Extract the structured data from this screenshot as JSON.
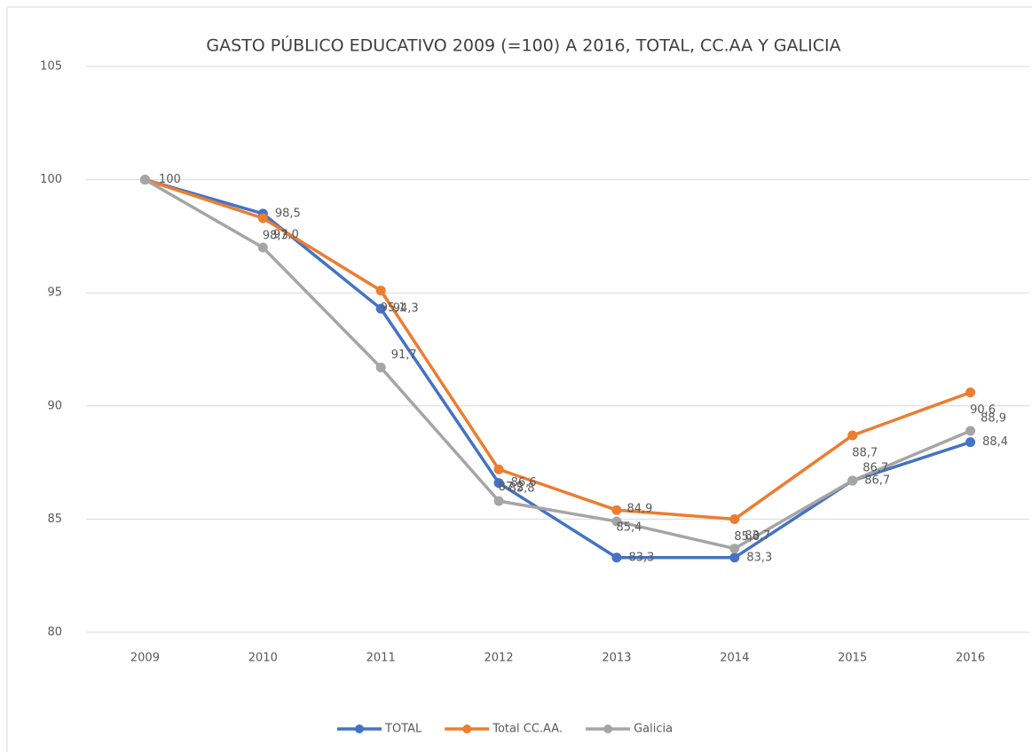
{
  "chart_data": {
    "type": "line",
    "title": "GASTO PÚBLICO EDUCATIVO 2009 (=100) A 2016, TOTAL, CC.AA Y GALICIA",
    "categories": [
      "2009",
      "2010",
      "2011",
      "2012",
      "2013",
      "2014",
      "2015",
      "2016"
    ],
    "series": [
      {
        "name": "TOTAL",
        "color": "#4472c4",
        "values": [
          100,
          98.5,
          94.3,
          86.6,
          83.3,
          83.3,
          86.7,
          88.4
        ],
        "value_labels": [
          "100",
          "98,5",
          "94,3",
          "86,6",
          "83,3",
          "83,3",
          "86,7",
          "88,4"
        ]
      },
      {
        "name": "Total CC.AA.",
        "color": "#ed7d31",
        "values": [
          100,
          98.3,
          95.1,
          87.2,
          85.4,
          85.0,
          88.7,
          90.6
        ],
        "value_labels": [
          null,
          "98,3",
          "95,1",
          "87,2",
          "85,4",
          "85,0",
          "88,7",
          "90,6"
        ]
      },
      {
        "name": "Galicia",
        "color": "#a5a5a5",
        "values": [
          100,
          97.0,
          91.7,
          85.8,
          84.9,
          83.7,
          86.7,
          88.9
        ],
        "value_labels": [
          null,
          "97,0",
          "91,7",
          "85,8",
          "84,9",
          "83,7",
          "86,7",
          "88,9"
        ]
      }
    ],
    "ylim": [
      80,
      105
    ],
    "yticks": [
      80,
      85,
      90,
      95,
      100,
      105
    ],
    "grid": true,
    "legend": "bottom"
  }
}
